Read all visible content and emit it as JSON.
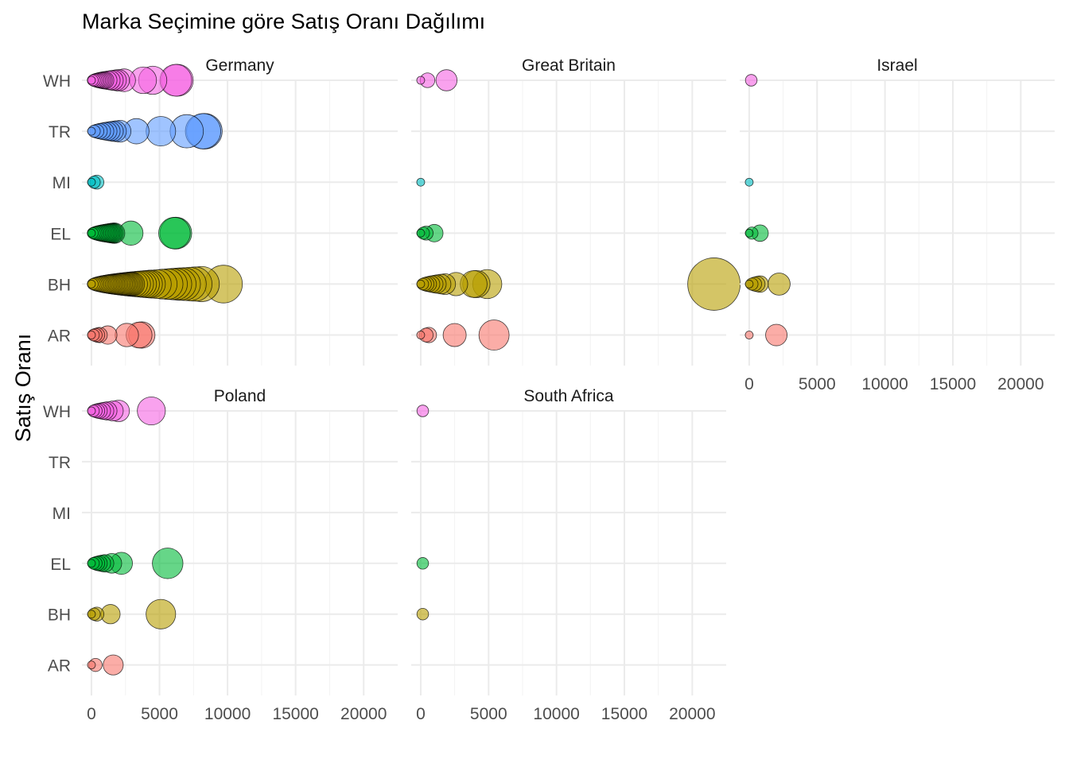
{
  "chart_data": {
    "type": "scatter",
    "title": "Marka Seçimine göre Satış Oranı Dağılımı",
    "xlabel": "",
    "ylabel": "Satış Oranı",
    "xlim": [
      -700,
      22500
    ],
    "xticks": [
      0,
      5000,
      10000,
      15000,
      20000
    ],
    "categories": [
      "AR",
      "BH",
      "EL",
      "MI",
      "TR",
      "WH"
    ],
    "grid": true,
    "legend": "none",
    "colors": {
      "AR": "#F8766D",
      "BH": "#B79F00",
      "EL": "#00BA38",
      "MI": "#00BFC4",
      "TR": "#619CFF",
      "WH": "#F564E3"
    },
    "size_scale": [
      0,
      21600
    ],
    "panels": [
      {
        "name": "Germany",
        "points": {
          "AR": [
            0,
            150,
            300,
            450,
            600,
            1200,
            2600,
            3500,
            3700
          ],
          "BH": [
            0,
            100,
            200,
            300,
            400,
            500,
            600,
            700,
            800,
            900,
            1000,
            1100,
            1200,
            1300,
            1400,
            1500,
            1600,
            1700,
            1800,
            1900,
            2000,
            2100,
            2200,
            2300,
            2400,
            2500,
            2600,
            2700,
            2800,
            2900,
            3000,
            3200,
            3400,
            3600,
            3800,
            4000,
            4200,
            4400,
            4800,
            5200,
            5600,
            5900,
            6200,
            6500,
            6800,
            7200,
            7600,
            8100,
            9700
          ],
          "EL": [
            0,
            100,
            200,
            300,
            400,
            500,
            600,
            700,
            800,
            900,
            1000,
            1100,
            1200,
            1300,
            1400,
            1500,
            1600,
            1700,
            2900,
            6100,
            6200
          ],
          "MI": [
            0,
            200,
            400
          ],
          "TR": [
            0,
            200,
            400,
            600,
            800,
            1000,
            1200,
            1400,
            1600,
            1800,
            2100,
            3300,
            5100,
            7000,
            8200,
            8300
          ],
          "WH": [
            0,
            100,
            200,
            300,
            400,
            500,
            600,
            700,
            800,
            900,
            1000,
            1200,
            1400,
            1600,
            1800,
            2000,
            2400,
            3800,
            4500,
            6200,
            6300
          ]
        }
      },
      {
        "name": "Great Britain",
        "points": {
          "AR": [
            0,
            400,
            600,
            2500,
            5400
          ],
          "BH": [
            0,
            150,
            300,
            450,
            600,
            800,
            1000,
            1200,
            1500,
            1800,
            2600,
            3900,
            4100,
            4900,
            21600
          ],
          "EL": [
            0,
            200,
            400,
            1000
          ],
          "MI": [
            0
          ],
          "TR": [],
          "WH": [
            0,
            500,
            1900
          ]
        }
      },
      {
        "name": "Israel",
        "points": {
          "AR": [
            0,
            2000
          ],
          "BH": [
            0,
            200,
            400,
            600,
            800,
            2200
          ],
          "EL": [
            0,
            200,
            800
          ],
          "MI": [
            0
          ],
          "TR": [],
          "WH": [
            150
          ]
        }
      },
      {
        "name": "Poland",
        "points": {
          "AR": [
            0,
            300,
            1600
          ],
          "BH": [
            0,
            200,
            400,
            1400,
            5100
          ],
          "EL": [
            0,
            150,
            300,
            450,
            600,
            800,
            1000,
            1500,
            2200,
            5600
          ],
          "MI": [],
          "TR": [],
          "WH": [
            0,
            150,
            300,
            450,
            600,
            800,
            1000,
            1200,
            1600,
            2000,
            4400
          ]
        }
      },
      {
        "name": "South Africa",
        "points": {
          "AR": [],
          "BH": [
            150
          ],
          "EL": [
            150
          ],
          "MI": [],
          "TR": [],
          "WH": [
            150
          ]
        }
      }
    ]
  }
}
